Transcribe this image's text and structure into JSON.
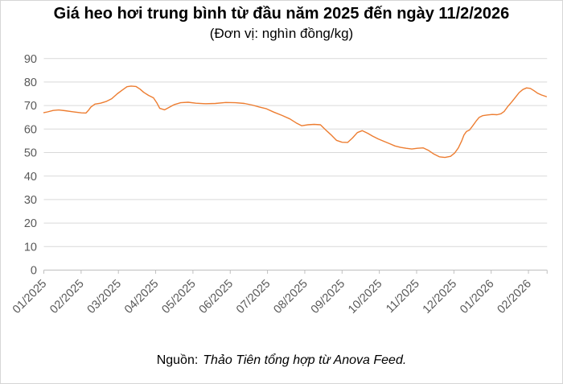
{
  "title": "Giá heo hơi trung bình từ đầu năm 2025 đến ngày 11/2/2026",
  "subtitle": "(Đơn vị: nghìn đồng/kg)",
  "source": {
    "prefix": "Nguồn:",
    "text": "Thảo Tiên tổng hợp từ Anova Feed."
  },
  "colors": {
    "line": "#ED7D31",
    "grid": "#D9D9D9",
    "axis": "#BFBFBF",
    "tick_label": "#595959",
    "border": "#D6D6D6"
  },
  "chart_data": {
    "type": "line",
    "title": "Giá heo hơi trung bình từ đầu năm 2025 đến ngày 11/2/2026",
    "subtitle": "(Đơn vị: nghìn đồng/kg)",
    "ylabel": "nghìn đồng/kg",
    "xlabel": "",
    "ylim": [
      0,
      90
    ],
    "grid": true,
    "legend": false,
    "y_ticks": [
      90,
      80,
      70,
      60,
      50,
      40,
      30,
      20,
      10,
      0
    ],
    "x_tick_labels": [
      "01/2025",
      "02/2025",
      "03/2025",
      "04/2025",
      "05/2025",
      "06/2025",
      "07/2025",
      "08/2025",
      "09/2025",
      "10/2025",
      "11/2025",
      "12/2025",
      "01/2026",
      "02/2026"
    ],
    "x_unit": "month index from 01/2025",
    "x_range": [
      0,
      13.5
    ],
    "series": [
      {
        "name": "Giá heo hơi trung bình (nghìn đồng/kg)",
        "points": [
          [
            0.0,
            67.0
          ],
          [
            0.1,
            67.3
          ],
          [
            0.25,
            67.9
          ],
          [
            0.4,
            68.1
          ],
          [
            0.57,
            67.8
          ],
          [
            0.75,
            67.4
          ],
          [
            0.9,
            67.1
          ],
          [
            1.01,
            66.9
          ],
          [
            1.13,
            66.8
          ],
          [
            1.2,
            68.0
          ],
          [
            1.26,
            69.3
          ],
          [
            1.37,
            70.6
          ],
          [
            1.52,
            71.0
          ],
          [
            1.67,
            71.7
          ],
          [
            1.82,
            72.9
          ],
          [
            1.97,
            75.0
          ],
          [
            2.1,
            76.5
          ],
          [
            2.23,
            78.0
          ],
          [
            2.34,
            78.3
          ],
          [
            2.47,
            78.1
          ],
          [
            2.58,
            77.0
          ],
          [
            2.68,
            75.6
          ],
          [
            2.81,
            74.3
          ],
          [
            2.94,
            73.3
          ],
          [
            3.03,
            71.2
          ],
          [
            3.11,
            68.8
          ],
          [
            3.24,
            68.2
          ],
          [
            3.37,
            69.3
          ],
          [
            3.5,
            70.4
          ],
          [
            3.67,
            71.2
          ],
          [
            3.87,
            71.4
          ],
          [
            4.08,
            71.0
          ],
          [
            4.34,
            70.8
          ],
          [
            4.6,
            70.9
          ],
          [
            4.88,
            71.3
          ],
          [
            5.14,
            71.2
          ],
          [
            5.38,
            70.9
          ],
          [
            5.59,
            70.2
          ],
          [
            5.78,
            69.4
          ],
          [
            5.96,
            68.7
          ],
          [
            6.17,
            67.2
          ],
          [
            6.39,
            65.8
          ],
          [
            6.6,
            64.3
          ],
          [
            6.77,
            62.6
          ],
          [
            6.92,
            61.4
          ],
          [
            7.08,
            61.8
          ],
          [
            7.25,
            62.0
          ],
          [
            7.42,
            61.8
          ],
          [
            7.55,
            59.8
          ],
          [
            7.7,
            57.6
          ],
          [
            7.85,
            55.2
          ],
          [
            8.0,
            54.4
          ],
          [
            8.15,
            54.3
          ],
          [
            8.28,
            56.2
          ],
          [
            8.41,
            58.5
          ],
          [
            8.54,
            59.3
          ],
          [
            8.69,
            58.2
          ],
          [
            8.82,
            57.0
          ],
          [
            8.97,
            55.8
          ],
          [
            9.12,
            54.8
          ],
          [
            9.27,
            53.8
          ],
          [
            9.42,
            52.8
          ],
          [
            9.57,
            52.2
          ],
          [
            9.72,
            51.8
          ],
          [
            9.87,
            51.5
          ],
          [
            10.02,
            51.8
          ],
          [
            10.18,
            52.0
          ],
          [
            10.31,
            51.0
          ],
          [
            10.46,
            49.4
          ],
          [
            10.61,
            48.2
          ],
          [
            10.76,
            47.9
          ],
          [
            10.91,
            48.4
          ],
          [
            11.02,
            49.8
          ],
          [
            11.12,
            52.0
          ],
          [
            11.21,
            55.0
          ],
          [
            11.27,
            57.5
          ],
          [
            11.34,
            59.0
          ],
          [
            11.42,
            59.6
          ],
          [
            11.51,
            61.5
          ],
          [
            11.6,
            63.5
          ],
          [
            11.68,
            65.0
          ],
          [
            11.77,
            65.7
          ],
          [
            11.9,
            66.0
          ],
          [
            12.03,
            66.2
          ],
          [
            12.16,
            66.1
          ],
          [
            12.26,
            66.5
          ],
          [
            12.35,
            67.5
          ],
          [
            12.44,
            69.5
          ],
          [
            12.55,
            71.5
          ],
          [
            12.65,
            73.5
          ],
          [
            12.75,
            75.5
          ],
          [
            12.85,
            76.8
          ],
          [
            12.95,
            77.5
          ],
          [
            13.05,
            77.3
          ],
          [
            13.15,
            76.3
          ],
          [
            13.25,
            75.2
          ],
          [
            13.35,
            74.5
          ],
          [
            13.48,
            73.8
          ]
        ]
      }
    ]
  }
}
